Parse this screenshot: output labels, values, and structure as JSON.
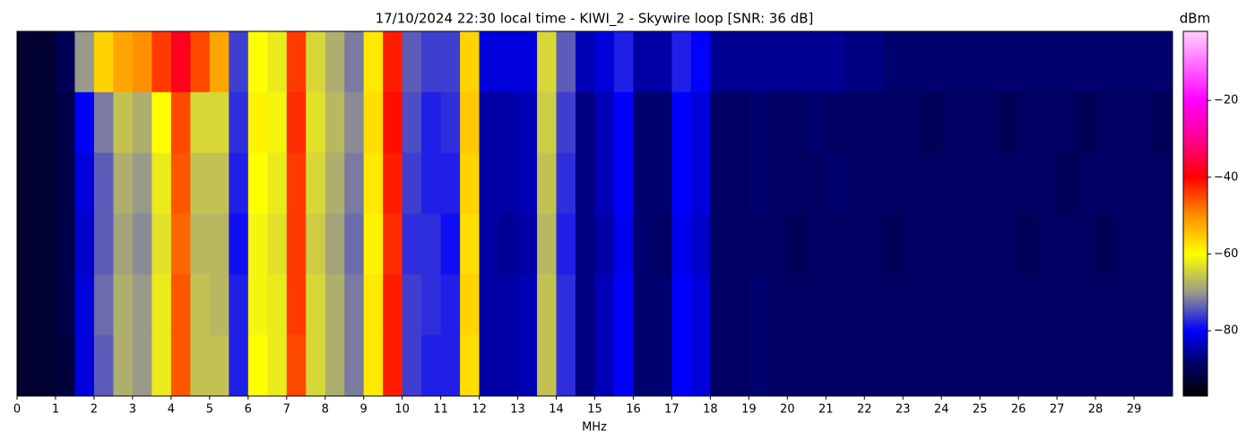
{
  "chart_data": {
    "type": "spectrogram",
    "title": "17/10/2024 22:30 local time - KIWI_2 - Skywire loop [SNR: 36 dB]",
    "x_label": "MHz",
    "colorbar_label": "dBm",
    "xlim": [
      0,
      30
    ],
    "xticks": [
      0,
      1,
      2,
      3,
      4,
      5,
      6,
      7,
      8,
      9,
      10,
      11,
      12,
      13,
      14,
      15,
      16,
      17,
      18,
      19,
      20,
      21,
      22,
      23,
      24,
      25,
      26,
      27,
      28,
      29
    ],
    "clim": [
      -97,
      -2
    ],
    "cticks": [
      {
        "value": -20,
        "label": "−20"
      },
      {
        "value": -40,
        "label": "−40"
      },
      {
        "value": -60,
        "label": "−60"
      },
      {
        "value": -80,
        "label": "−80"
      }
    ],
    "colormap": [
      {
        "value": -97,
        "color": "#000000"
      },
      {
        "value": -88,
        "color": "#00006e"
      },
      {
        "value": -80,
        "color": "#0000ff"
      },
      {
        "value": -70,
        "color": "#9a9a8a"
      },
      {
        "value": -60,
        "color": "#ffff00"
      },
      {
        "value": -50,
        "color": "#ff9000"
      },
      {
        "value": -40,
        "color": "#ff0000"
      },
      {
        "value": -30,
        "color": "#ff0090"
      },
      {
        "value": -20,
        "color": "#ff00ff"
      },
      {
        "value": -2,
        "color": "#ffd0ff"
      }
    ],
    "values": [
      [
        -93,
        -93,
        -90,
        -70,
        -56,
        -52,
        -50,
        -44,
        -38,
        -45,
        -52,
        -76,
        -60,
        -62,
        -44,
        -64,
        -68,
        -72,
        -58,
        -42,
        -74,
        -76,
        -76,
        -56,
        -82,
        -82,
        -82,
        -64,
        -74,
        -84,
        -82,
        -78,
        -85,
        -85,
        -78,
        -80,
        -86,
        -86,
        -86,
        -86,
        -86,
        -86,
        -86,
        -87,
        -87,
        -88,
        -88,
        -88,
        -88,
        -88,
        -88,
        -88,
        -88,
        -88,
        -88,
        -88,
        -88,
        -88,
        -88,
        -88
      ],
      [
        -93,
        -93,
        -91,
        -80,
        -72,
        -66,
        -68,
        -60,
        -45,
        -64,
        -64,
        -77,
        -59,
        -61,
        -43,
        -63,
        -67,
        -71,
        -57,
        -41,
        -75,
        -78,
        -77,
        -55,
        -85,
        -85,
        -84,
        -65,
        -76,
        -87,
        -84,
        -80,
        -88,
        -88,
        -80,
        -82,
        -89,
        -89,
        -88,
        -89,
        -89,
        -88,
        -89,
        -89,
        -89,
        -89,
        -89,
        -90,
        -89,
        -89,
        -89,
        -90,
        -89,
        -89,
        -89,
        -90,
        -89,
        -89,
        -89,
        -90
      ],
      [
        -93,
        -93,
        -91,
        -82,
        -74,
        -68,
        -70,
        -62,
        -46,
        -66,
        -66,
        -78,
        -60,
        -62,
        -44,
        -64,
        -68,
        -72,
        -58,
        -42,
        -76,
        -78,
        -78,
        -56,
        -85,
        -85,
        -84,
        -66,
        -77,
        -87,
        -84,
        -80,
        -88,
        -88,
        -80,
        -82,
        -89,
        -89,
        -88,
        -89,
        -89,
        -89,
        -88,
        -89,
        -89,
        -89,
        -89,
        -89,
        -89,
        -89,
        -89,
        -89,
        -89,
        -89,
        -90,
        -89,
        -89,
        -89,
        -89,
        -89
      ],
      [
        -93,
        -93,
        -91,
        -83,
        -74,
        -69,
        -71,
        -63,
        -47,
        -67,
        -67,
        -79,
        -61,
        -63,
        -44,
        -65,
        -69,
        -73,
        -59,
        -43,
        -77,
        -77,
        -79,
        -57,
        -85,
        -86,
        -85,
        -67,
        -78,
        -87,
        -85,
        -81,
        -88,
        -89,
        -81,
        -83,
        -89,
        -89,
        -89,
        -89,
        -90,
        -89,
        -89,
        -89,
        -89,
        -90,
        -89,
        -89,
        -89,
        -89,
        -89,
        -89,
        -90,
        -89,
        -89,
        -89,
        -90,
        -89,
        -89,
        -89
      ],
      [
        -93,
        -93,
        -91,
        -82,
        -73,
        -68,
        -70,
        -62,
        -46,
        -66,
        -67,
        -78,
        -61,
        -62,
        -44,
        -64,
        -68,
        -72,
        -58,
        -42,
        -76,
        -77,
        -78,
        -56,
        -85,
        -85,
        -84,
        -66,
        -77,
        -87,
        -84,
        -80,
        -88,
        -88,
        -80,
        -82,
        -89,
        -89,
        -88,
        -89,
        -89,
        -89,
        -89,
        -89,
        -89,
        -89,
        -89,
        -89,
        -89,
        -89,
        -89,
        -89,
        -89,
        -89,
        -89,
        -89,
        -89,
        -89,
        -89,
        -89
      ],
      [
        -93,
        -93,
        -92,
        -82,
        -74,
        -68,
        -70,
        -62,
        -46,
        -66,
        -66,
        -78,
        -60,
        -62,
        -45,
        -64,
        -68,
        -72,
        -58,
        -42,
        -76,
        -78,
        -78,
        -57,
        -85,
        -85,
        -84,
        -66,
        -77,
        -87,
        -84,
        -80,
        -88,
        -88,
        -80,
        -82,
        -89,
        -89,
        -88,
        -89,
        -89,
        -89,
        -89,
        -89,
        -89,
        -89,
        -89,
        -89,
        -89,
        -89,
        -89,
        -89,
        -89,
        -89,
        -89,
        -89,
        -89,
        -89,
        -89,
        -89
      ]
    ]
  }
}
